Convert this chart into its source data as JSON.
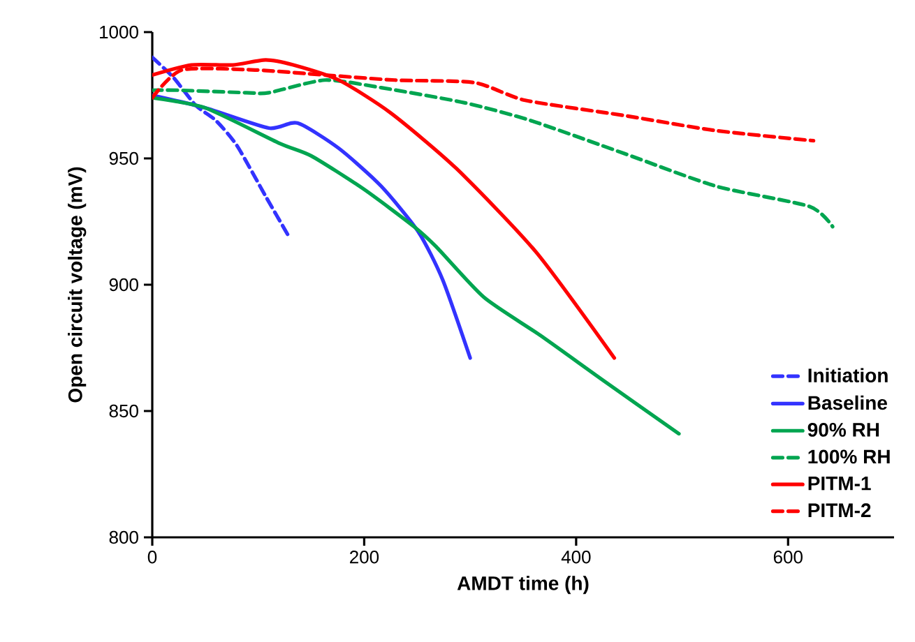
{
  "chart_data": {
    "type": "line",
    "xlabel": "AMDT time (h)",
    "ylabel": "Open circuit voltage (mV)",
    "xlim": [
      0,
      700
    ],
    "ylim": [
      800,
      1000
    ],
    "xticks": [
      0,
      200,
      400,
      600
    ],
    "yticks": [
      800,
      850,
      900,
      950,
      1000
    ],
    "legend": "bottom right",
    "grid": false,
    "series": [
      {
        "name": "Initiation",
        "color": "#3333ff",
        "line_style": "dashed",
        "x": [
          0,
          20,
          41,
          60,
          80,
          107,
          129
        ],
        "values": [
          990,
          982,
          971,
          965,
          955,
          935,
          919
        ]
      },
      {
        "name": "Baseline",
        "color": "#3333ff",
        "line_style": "solid",
        "x": [
          0,
          50,
          110,
          137,
          176,
          216,
          251,
          274,
          300
        ],
        "values": [
          975,
          970,
          962,
          964,
          954,
          939,
          921,
          902,
          871
        ]
      },
      {
        "name": "90% RH",
        "color": "#00a550",
        "line_style": "solid",
        "x": [
          0,
          50,
          120,
          150,
          199,
          247,
          268,
          313,
          366,
          426,
          497
        ],
        "values": [
          974,
          970,
          956,
          951,
          938,
          923,
          915,
          895,
          880,
          862,
          841
        ]
      },
      {
        "name": "100% RH",
        "color": "#00a550",
        "line_style": "dashed",
        "x": [
          0,
          24,
          89,
          110,
          163,
          216,
          295,
          357,
          445,
          532,
          620,
          642
        ],
        "values": [
          977,
          977,
          976,
          976,
          981,
          978,
          972,
          965,
          952,
          939,
          931,
          923
        ]
      },
      {
        "name": "PITM-1",
        "color": "#ff0000",
        "line_style": "solid",
        "x": [
          0,
          37,
          76,
          107,
          133,
          176,
          225,
          287,
          362,
          436
        ],
        "values": [
          983,
          987,
          987,
          989,
          987,
          981,
          968,
          946,
          913,
          871
        ]
      },
      {
        "name": "PITM-2",
        "color": "#ff0000",
        "line_style": "dashed",
        "x": [
          0,
          28,
          97,
          163,
          229,
          304,
          352,
          445,
          532,
          624
        ],
        "values": [
          974,
          985,
          985,
          983,
          981,
          980,
          973,
          967,
          961,
          957
        ]
      }
    ]
  }
}
